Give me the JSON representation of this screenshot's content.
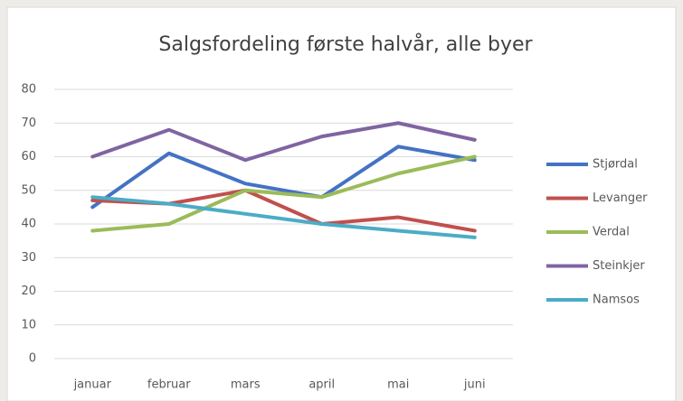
{
  "chart_data": {
    "type": "line",
    "title": "Salgsfordeling første halvår, alle byer",
    "categories": [
      "januar",
      "februar",
      "mars",
      "april",
      "mai",
      "juni"
    ],
    "series": [
      {
        "name": "Stjørdal",
        "color": "#4472c4",
        "values": [
          45,
          61,
          52,
          48,
          63,
          59
        ]
      },
      {
        "name": "Levanger",
        "color": "#c0504d",
        "values": [
          47,
          46,
          50,
          40,
          42,
          38
        ]
      },
      {
        "name": "Verdal",
        "color": "#9bbb59",
        "values": [
          38,
          40,
          50,
          48,
          55,
          60
        ]
      },
      {
        "name": "Steinkjer",
        "color": "#8064a2",
        "values": [
          60,
          68,
          59,
          66,
          70,
          65
        ]
      },
      {
        "name": "Namsos",
        "color": "#4bacc6",
        "values": [
          48,
          46,
          43,
          40,
          38,
          36
        ]
      }
    ],
    "ylim": [
      0,
      80
    ],
    "yticks": [
      0,
      10,
      20,
      30,
      40,
      50,
      60,
      70,
      80
    ],
    "grid": true,
    "legend": "right"
  }
}
